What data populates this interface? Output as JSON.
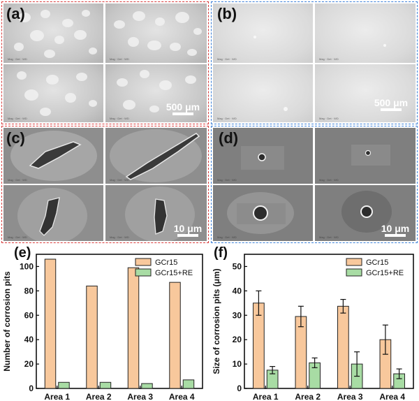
{
  "panels": {
    "a": {
      "label": "(a)",
      "scale": "500 μm"
    },
    "b": {
      "label": "(b)",
      "scale": "500 μm"
    },
    "c": {
      "label": "(c)",
      "scale": "10 μm"
    },
    "d": {
      "label": "(d)",
      "scale": "10 μm"
    },
    "e": {
      "label": "(e)"
    },
    "f": {
      "label": "(f)"
    }
  },
  "colors": {
    "gcr15": "#f8c89c",
    "gcr15re": "#a8dca4",
    "stroke": "#222222",
    "red_border": "#d83a3a",
    "blue_border": "#3a7fd8"
  },
  "chart_data": [
    {
      "type": "bar",
      "panel": "e",
      "categories": [
        "Area 1",
        "Area 2",
        "Area 3",
        "Area 4"
      ],
      "series": [
        {
          "name": "GCr15",
          "values": [
            106,
            84,
            99,
            87
          ]
        },
        {
          "name": "GCr15+RE",
          "values": [
            5,
            5,
            4,
            7
          ]
        }
      ],
      "xlabel": "",
      "ylabel": "Number of corrosion pits",
      "ylim": [
        0,
        110
      ],
      "yticks": [
        0,
        20,
        40,
        60,
        80,
        100
      ],
      "legend": "top-right"
    },
    {
      "type": "bar",
      "panel": "f",
      "categories": [
        "Area 1",
        "Area 2",
        "Area 3",
        "Area 4"
      ],
      "series": [
        {
          "name": "GCr15",
          "values": [
            35,
            29.5,
            33.7,
            20
          ],
          "errors": [
            5,
            4.2,
            2.8,
            6
          ]
        },
        {
          "name": "GCr15+RE",
          "values": [
            7.5,
            10.5,
            10,
            6
          ],
          "errors": [
            1.5,
            2,
            5,
            2
          ]
        }
      ],
      "xlabel": "",
      "ylabel": "Size of corrosion pits (μm)",
      "ylim": [
        0,
        55
      ],
      "yticks": [
        0,
        10,
        20,
        30,
        40,
        50
      ],
      "legend": "top-right"
    }
  ]
}
